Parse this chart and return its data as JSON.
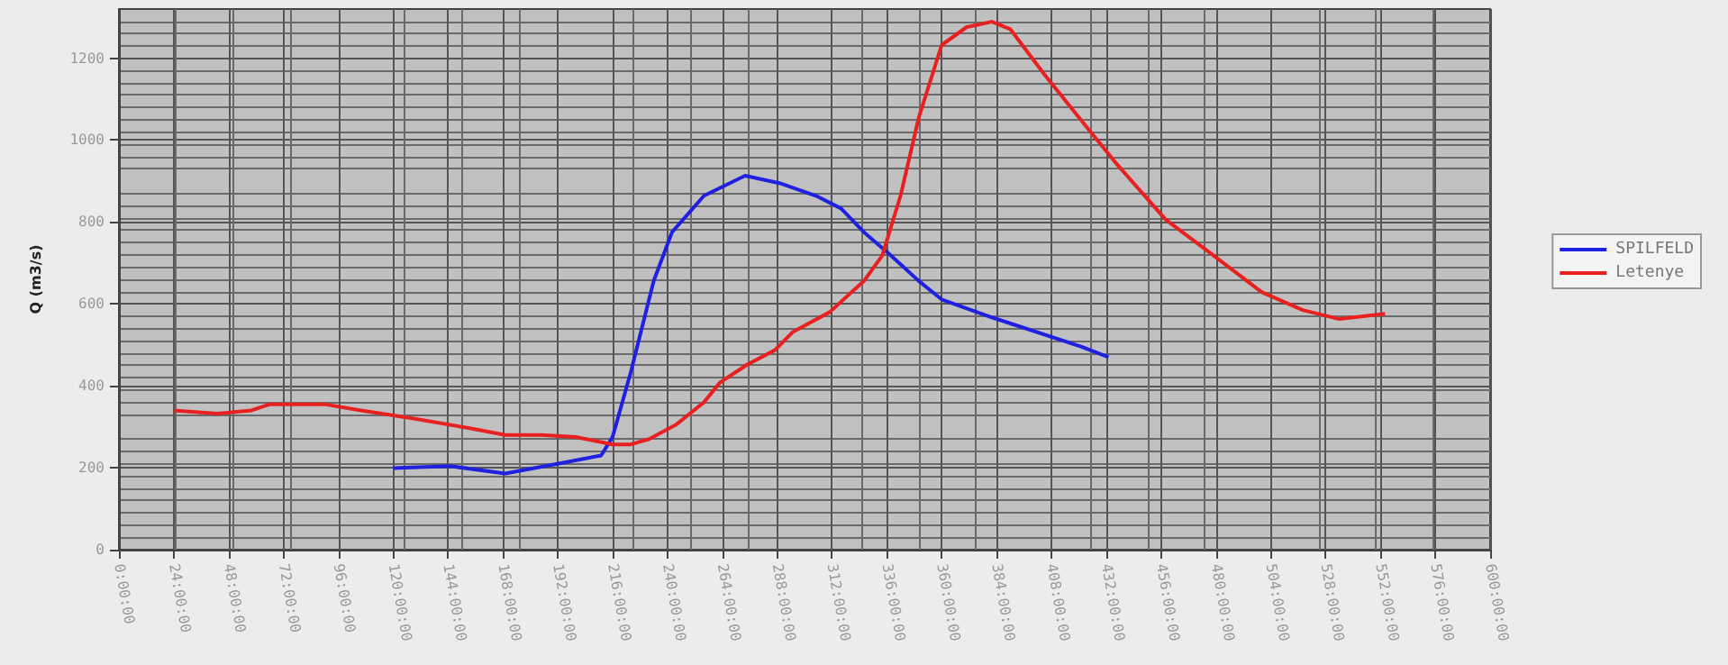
{
  "chart_data": {
    "type": "line",
    "ylabel": "Q (m3/s)",
    "xlim": [
      0,
      600
    ],
    "xticks": [
      {
        "value": 0,
        "label": "0:00:00"
      },
      {
        "value": 24,
        "label": "24:00:00"
      },
      {
        "value": 48,
        "label": "48:00:00"
      },
      {
        "value": 72,
        "label": "72:00:00"
      },
      {
        "value": 96,
        "label": "96:00:00"
      },
      {
        "value": 120,
        "label": "120:00:00"
      },
      {
        "value": 144,
        "label": "144:00:00"
      },
      {
        "value": 168,
        "label": "168:00:00"
      },
      {
        "value": 192,
        "label": "192:00:00"
      },
      {
        "value": 216,
        "label": "216:00:00"
      },
      {
        "value": 240,
        "label": "240:00:00"
      },
      {
        "value": 264,
        "label": "264:00:00"
      },
      {
        "value": 288,
        "label": "288:00:00"
      },
      {
        "value": 312,
        "label": "312:00:00"
      },
      {
        "value": 336,
        "label": "336:00:00"
      },
      {
        "value": 360,
        "label": "360:00:00"
      },
      {
        "value": 384,
        "label": "384:00:00"
      },
      {
        "value": 408,
        "label": "408:00:00"
      },
      {
        "value": 432,
        "label": "432:00:00"
      },
      {
        "value": 456,
        "label": "456:00:00"
      },
      {
        "value": 480,
        "label": "480:00:00"
      },
      {
        "value": 504,
        "label": "504:00:00"
      },
      {
        "value": 528,
        "label": "528:00:00"
      },
      {
        "value": 552,
        "label": "552:00:00"
      },
      {
        "value": 576,
        "label": "576:00:00"
      },
      {
        "value": 600,
        "label": "600:00:00"
      }
    ],
    "ylim": [
      0,
      1320
    ],
    "yticks": [
      0,
      200,
      400,
      600,
      800,
      1000,
      1200
    ],
    "grid": true,
    "legend": "right",
    "marker": "none",
    "line_style": "solid",
    "series": [
      {
        "name": "SPILFELD",
        "color": "#2020e0",
        "x": [
          120,
          145,
          169,
          195,
          211,
          216,
          224,
          234,
          242,
          256,
          274,
          289,
          305,
          316,
          326,
          337,
          350,
          360,
          382,
          421,
          433
        ],
        "values": [
          199,
          204,
          186,
          213,
          230,
          275,
          434,
          656,
          775,
          864,
          913,
          895,
          864,
          833,
          775,
          722,
          656,
          611,
          567,
          496,
          470
        ]
      },
      {
        "name": "Letenye",
        "color": "#e82020",
        "x": [
          24,
          43,
          58,
          66,
          90,
          106,
          129,
          153,
          169,
          185,
          200,
          216,
          224,
          232,
          244,
          256,
          263,
          275,
          287,
          295,
          311,
          326,
          334,
          342,
          350,
          360,
          371,
          382,
          390,
          405,
          424,
          437,
          458,
          479,
          500,
          518,
          534,
          554
        ],
        "values": [
          340,
          332,
          340,
          355,
          355,
          340,
          320,
          297,
          280,
          280,
          275,
          257,
          257,
          270,
          306,
          360,
          408,
          452,
          487,
          532,
          580,
          656,
          718,
          864,
          1055,
          1232,
          1276,
          1289,
          1271,
          1160,
          1028,
          939,
          806,
          718,
          629,
          585,
          563,
          576
        ]
      }
    ]
  }
}
